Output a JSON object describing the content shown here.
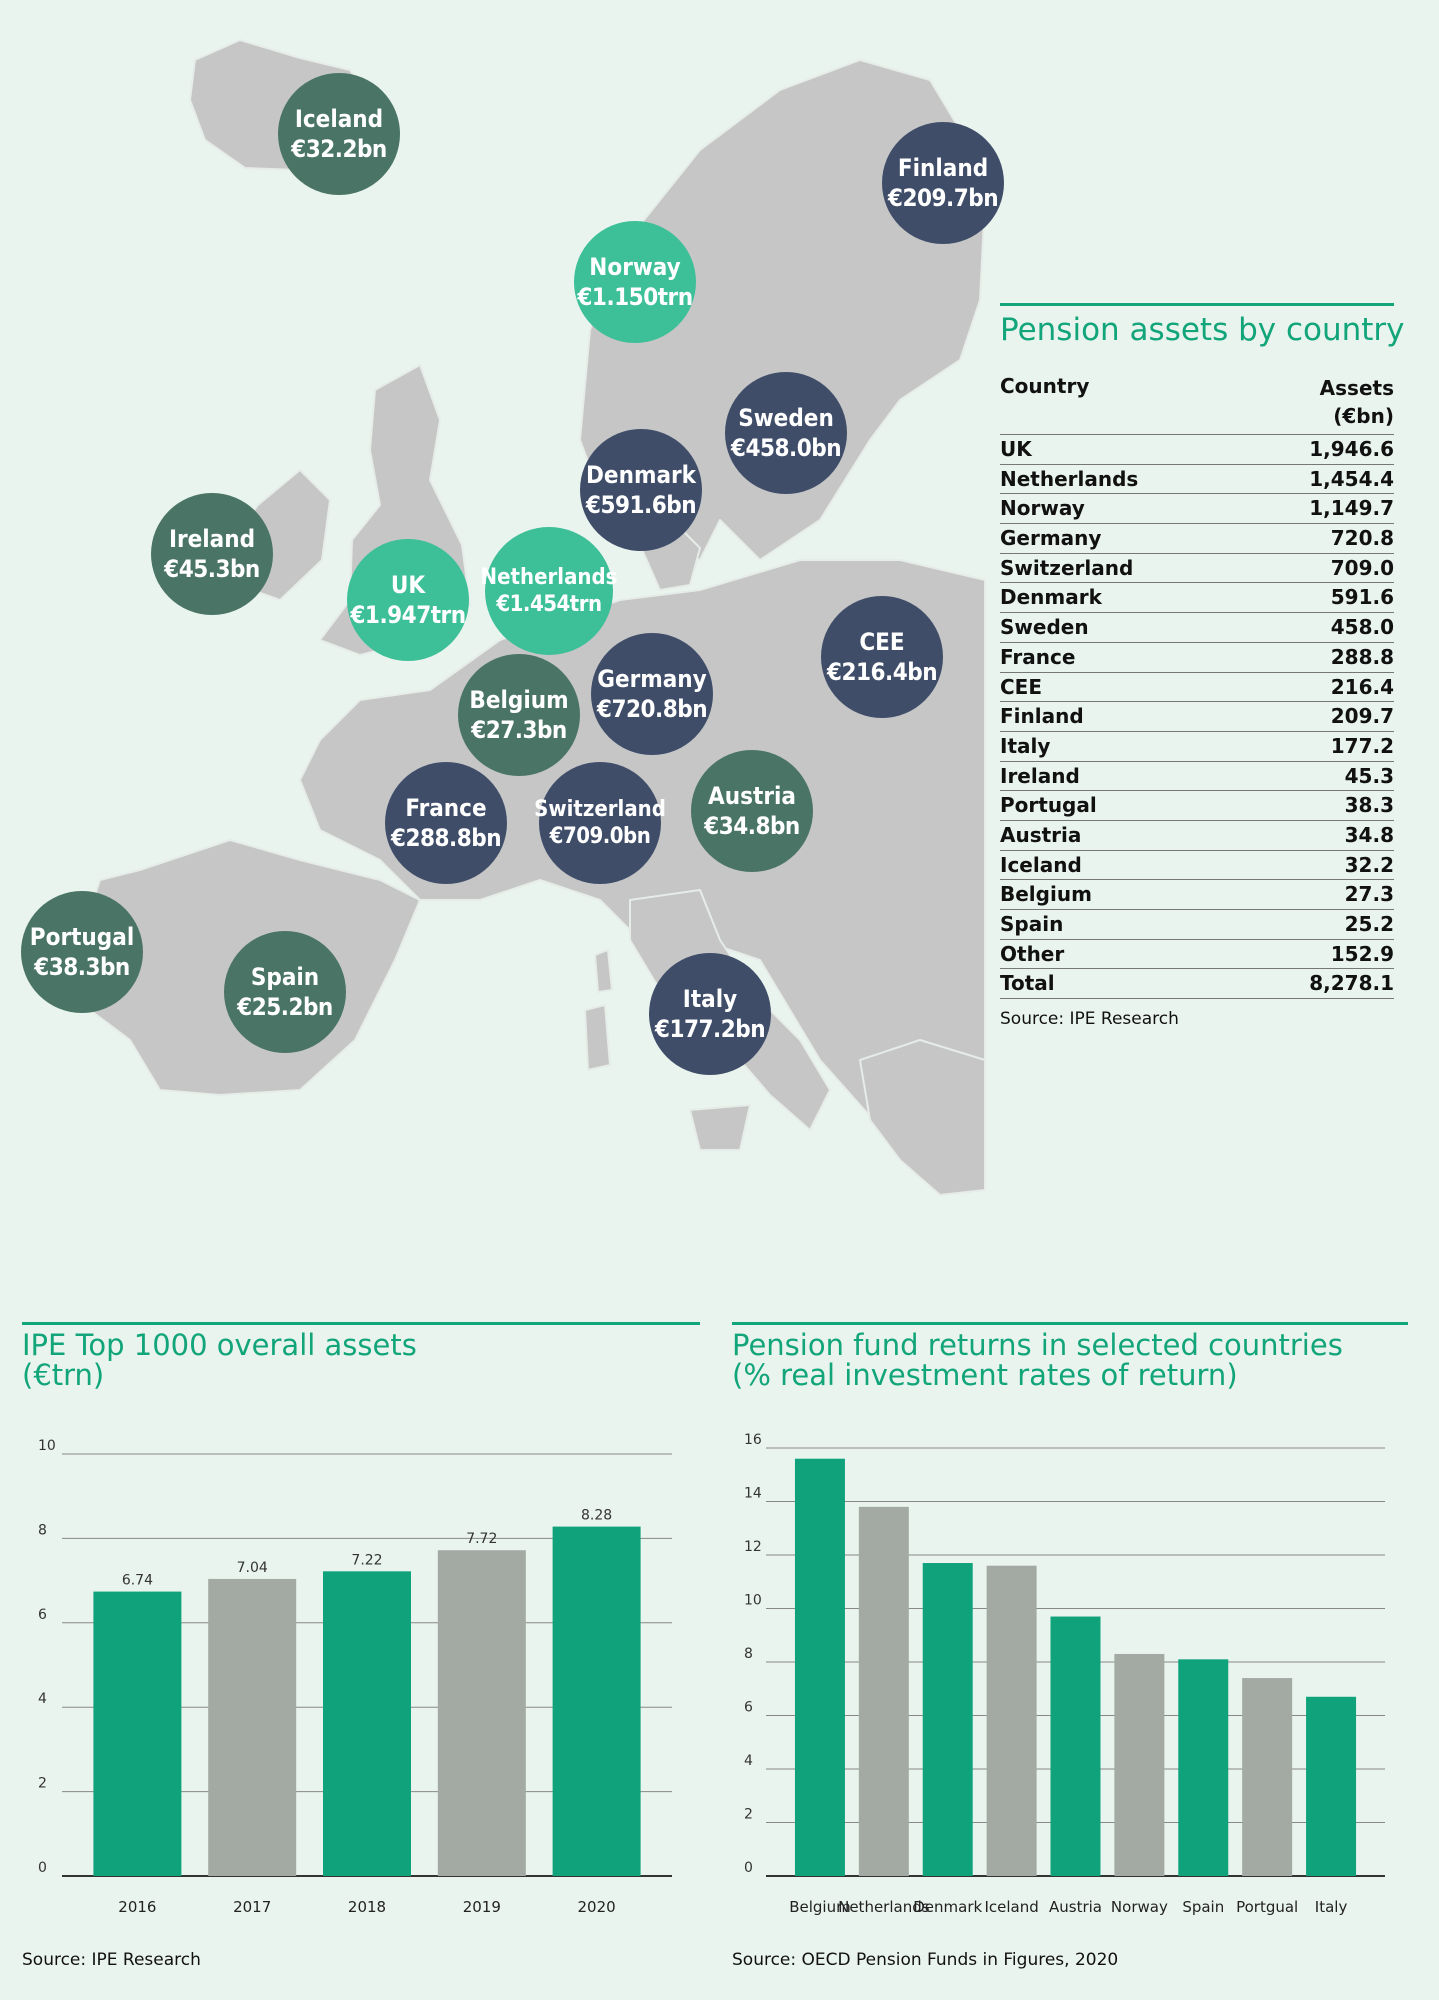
{
  "map": {
    "bubbles": [
      {
        "id": "iceland",
        "name": "Iceland",
        "amount": "€32.2bn",
        "tone": "green"
      },
      {
        "id": "finland",
        "name": "Finland",
        "amount": "€209.7bn",
        "tone": "dark"
      },
      {
        "id": "norway",
        "name": "Norway",
        "amount": "€1.150trn",
        "tone": "teal"
      },
      {
        "id": "sweden",
        "name": "Sweden",
        "amount": "€458.0bn",
        "tone": "dark"
      },
      {
        "id": "denmark",
        "name": "Denmark",
        "amount": "€591.6bn",
        "tone": "dark"
      },
      {
        "id": "ireland",
        "name": "Ireland",
        "amount": "€45.3bn",
        "tone": "green"
      },
      {
        "id": "uk",
        "name": "UK",
        "amount": "€1.947trn",
        "tone": "teal"
      },
      {
        "id": "netherlands",
        "name": "Netherlands",
        "amount": "€1.454trn",
        "tone": "teal"
      },
      {
        "id": "cee",
        "name": "CEE",
        "amount": "€216.4bn",
        "tone": "dark"
      },
      {
        "id": "belgium",
        "name": "Belgium",
        "amount": "€27.3bn",
        "tone": "green"
      },
      {
        "id": "germany",
        "name": "Germany",
        "amount": "€720.8bn",
        "tone": "dark"
      },
      {
        "id": "france",
        "name": "France",
        "amount": "€288.8bn",
        "tone": "dark"
      },
      {
        "id": "switzerland",
        "name": "Switzerland",
        "amount": "€709.0bn",
        "tone": "dark"
      },
      {
        "id": "austria",
        "name": "Austria",
        "amount": "€34.8bn",
        "tone": "green"
      },
      {
        "id": "portugal",
        "name": "Portugal",
        "amount": "€38.3bn",
        "tone": "green"
      },
      {
        "id": "spain",
        "name": "Spain",
        "amount": "€25.2bn",
        "tone": "green"
      },
      {
        "id": "italy",
        "name": "Italy",
        "amount": "€177.2bn",
        "tone": "dark"
      }
    ]
  },
  "table": {
    "title": "Pension assets by country",
    "col_country": "Country",
    "col_assets_1": "Assets",
    "col_assets_2": "(€bn)",
    "rows": [
      {
        "country": "UK",
        "value": "1,946.6"
      },
      {
        "country": "Netherlands",
        "value": "1,454.4"
      },
      {
        "country": "Norway",
        "value": "1,149.7"
      },
      {
        "country": "Germany",
        "value": "720.8"
      },
      {
        "country": "Switzerland",
        "value": "709.0"
      },
      {
        "country": "Denmark",
        "value": "591.6"
      },
      {
        "country": "Sweden",
        "value": "458.0"
      },
      {
        "country": "France",
        "value": "288.8"
      },
      {
        "country": "CEE",
        "value": "216.4"
      },
      {
        "country": "Finland",
        "value": "209.7"
      },
      {
        "country": "Italy",
        "value": "177.2"
      },
      {
        "country": "Ireland",
        "value": "45.3"
      },
      {
        "country": "Portugal",
        "value": "38.3"
      },
      {
        "country": "Austria",
        "value": "34.8"
      },
      {
        "country": "Iceland",
        "value": "32.2"
      },
      {
        "country": "Belgium",
        "value": "27.3"
      },
      {
        "country": "Spain",
        "value": "25.2"
      },
      {
        "country": "Other",
        "value": "152.9"
      },
      {
        "country": "Total",
        "value": "8,278.1"
      }
    ],
    "source": "Source: IPE Research"
  },
  "colors": {
    "accent": "#12a57a",
    "bar_green": "#10a37b",
    "bar_grey": "#a3aaa4",
    "bubble_dark": "#3f4d69",
    "bubble_green": "#4a7566",
    "bubble_teal": "#3dbf98",
    "land": "#c5c6c5"
  },
  "chart_data": [
    {
      "type": "bar",
      "title": "IPE Top 1000 overall assets",
      "subtitle": "(€trn)",
      "categories": [
        "2016",
        "2017",
        "2018",
        "2019",
        "2020"
      ],
      "values": [
        6.74,
        7.04,
        7.22,
        7.72,
        8.28
      ],
      "value_labels": [
        "6.74",
        "7.04",
        "7.22",
        "7.72",
        "8.28"
      ],
      "bar_colors": [
        "green",
        "grey",
        "green",
        "grey",
        "green"
      ],
      "yticks": [
        0,
        2,
        4,
        6,
        8,
        10
      ],
      "ylim": [
        0,
        10
      ],
      "grid": true,
      "source": "Source: IPE Research"
    },
    {
      "type": "bar",
      "title": "Pension fund returns in selected countries",
      "subtitle": "(% real investment rates of return)",
      "categories": [
        "Belgium",
        "Netherlands",
        "Denmark",
        "Iceland",
        "Austria",
        "Norway",
        "Spain",
        "Portgual",
        "Italy"
      ],
      "values": [
        15.6,
        13.8,
        11.7,
        11.6,
        9.7,
        8.3,
        8.1,
        7.4,
        6.7
      ],
      "bar_colors": [
        "green",
        "grey",
        "green",
        "grey",
        "green",
        "grey",
        "green",
        "grey",
        "green"
      ],
      "yticks": [
        0,
        2,
        4,
        6,
        8,
        10,
        12,
        14,
        16
      ],
      "ylim": [
        0,
        16
      ],
      "grid": true,
      "source": "Source: OECD Pension Funds in Figures, 2020"
    }
  ]
}
